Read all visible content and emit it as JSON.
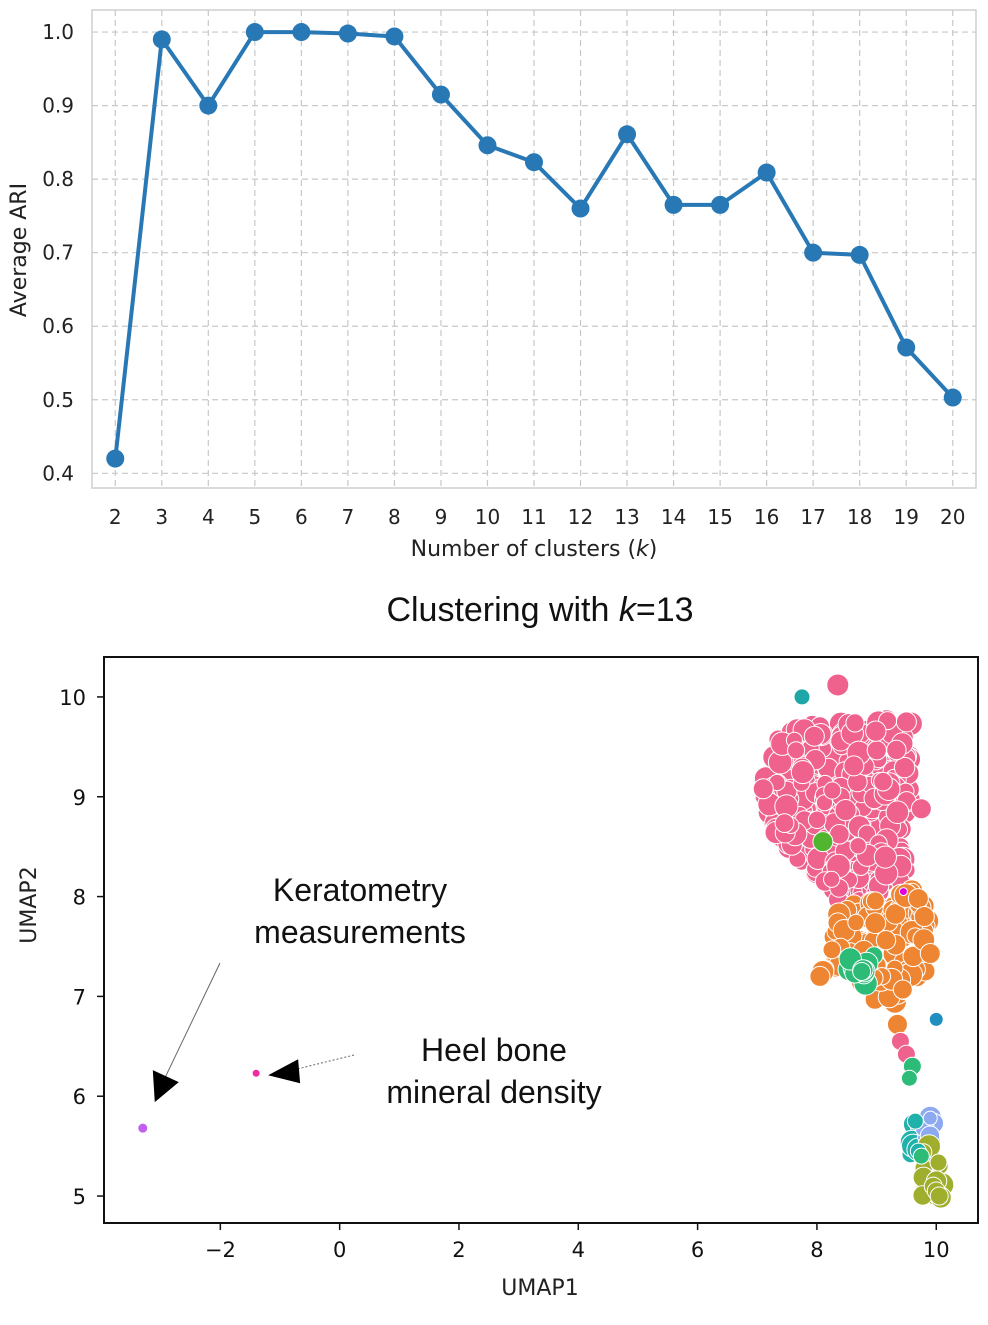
{
  "chart_data": [
    {
      "type": "line",
      "title": "",
      "xlabel": "Number of clusters (k)",
      "xlabel_plain": "Number of clusters (",
      "xlabel_var": "k",
      "xlabel_close": ")",
      "ylabel": "Average ARI",
      "x": [
        2,
        3,
        4,
        5,
        6,
        7,
        8,
        9,
        10,
        11,
        12,
        13,
        14,
        15,
        16,
        17,
        18,
        19,
        20
      ],
      "y": [
        0.42,
        0.99,
        0.9,
        1.0,
        1.0,
        0.998,
        0.994,
        0.915,
        0.846,
        0.823,
        0.76,
        0.861,
        0.765,
        0.765,
        0.809,
        0.7,
        0.697,
        0.571,
        0.503
      ],
      "xlim": [
        1.5,
        20.5
      ],
      "ylim": [
        0.38,
        1.03
      ],
      "xticks": [
        2,
        3,
        4,
        5,
        6,
        7,
        8,
        9,
        10,
        11,
        12,
        13,
        14,
        15,
        16,
        17,
        18,
        19,
        20
      ],
      "yticks": [
        0.4,
        0.5,
        0.6,
        0.7,
        0.8,
        0.9,
        1.0
      ],
      "ytick_labels": [
        "0.4",
        "0.5",
        "0.6",
        "0.7",
        "0.8",
        "0.9",
        "1.0"
      ],
      "grid": true,
      "color": "#2878b5"
    },
    {
      "type": "scatter",
      "title": "Clustering with k=13",
      "title_plain": "Clustering with ",
      "title_var": "k",
      "title_rest": "=13",
      "xlabel": "UMAP1",
      "ylabel": "UMAP2",
      "xlim": [
        -3.95,
        10.7
      ],
      "ylim": [
        4.73,
        10.4
      ],
      "xticks": [
        -2,
        0,
        2,
        4,
        6,
        8,
        10
      ],
      "xtick_labels": [
        "−2",
        "0",
        "2",
        "4",
        "6",
        "8",
        "10"
      ],
      "yticks": [
        5,
        6,
        7,
        8,
        9,
        10
      ],
      "ytick_labels": [
        "5",
        "6",
        "7",
        "8",
        "9",
        "10"
      ],
      "grid": false,
      "clusters": [
        {
          "color": "#f0628e",
          "region": [
            [
              7.4,
              9.7
            ],
            [
              9.6,
              9.8
            ],
            [
              9.5,
              8.0
            ],
            [
              8.9,
              7.8
            ],
            [
              8.0,
              8.0
            ],
            [
              7.3,
              8.6
            ],
            [
              7.0,
              9.1
            ]
          ],
          "count": 360
        },
        {
          "color": "#ee8533",
          "region": [
            [
              8.4,
              7.9
            ],
            [
              9.8,
              8.1
            ],
            [
              9.9,
              7.3
            ],
            [
              9.2,
              6.8
            ],
            [
              8.6,
              7.2
            ],
            [
              8.1,
              7.2
            ]
          ],
          "count": 120
        },
        {
          "color": "#2dbb78",
          "region": [
            [
              8.5,
              7.5
            ],
            [
              9.0,
              7.5
            ],
            [
              8.8,
              7.0
            ],
            [
              8.5,
              7.1
            ]
          ],
          "count": 10
        },
        {
          "color": "#20b2aa",
          "region": [
            [
              9.5,
              5.8
            ],
            [
              9.9,
              5.8
            ],
            [
              9.9,
              5.3
            ],
            [
              9.5,
              5.3
            ]
          ],
          "count": 10
        },
        {
          "color": "#8da9ef",
          "region": [
            [
              9.8,
              5.8
            ],
            [
              10.0,
              5.8
            ],
            [
              10.0,
              5.4
            ],
            [
              9.8,
              5.4
            ]
          ],
          "count": 10
        },
        {
          "color": "#9fae2d",
          "region": [
            [
              9.7,
              5.5
            ],
            [
              10.1,
              5.5
            ],
            [
              10.1,
              4.97
            ],
            [
              9.7,
              4.97
            ]
          ],
          "count": 15
        }
      ],
      "points": [
        {
          "x": 8.35,
          "y": 10.12,
          "color": "#f0628e",
          "size": 11
        },
        {
          "x": 7.75,
          "y": 10.0,
          "color": "#1fa6a6",
          "size": 8
        },
        {
          "x": 9.5,
          "y": 9.75,
          "color": "#f0628e",
          "size": 10
        },
        {
          "x": 7.1,
          "y": 9.08,
          "color": "#f0628e",
          "size": 10
        },
        {
          "x": 9.75,
          "y": 8.88,
          "color": "#f0628e",
          "size": 10
        },
        {
          "x": 8.1,
          "y": 8.55,
          "color": "#52b52f",
          "size": 10
        },
        {
          "x": 9.45,
          "y": 8.05,
          "color": "#e000e0",
          "size": 4
        },
        {
          "x": 9.7,
          "y": 7.98,
          "color": "#ee8533",
          "size": 10
        },
        {
          "x": 9.8,
          "y": 7.8,
          "color": "#ee8533",
          "size": 10
        },
        {
          "x": 8.1,
          "y": 7.25,
          "color": "#ee8533",
          "size": 11
        },
        {
          "x": 8.05,
          "y": 7.2,
          "color": "#ee8533",
          "size": 10
        },
        {
          "x": 9.9,
          "y": 7.43,
          "color": "#ee8533",
          "size": 10
        },
        {
          "x": 9.35,
          "y": 6.72,
          "color": "#ee8533",
          "size": 10
        },
        {
          "x": 9.4,
          "y": 6.55,
          "color": "#f0628e",
          "size": 9
        },
        {
          "x": 9.5,
          "y": 6.42,
          "color": "#f0628e",
          "size": 9
        },
        {
          "x": 8.75,
          "y": 7.25,
          "color": "#2dbb78",
          "size": 9
        },
        {
          "x": 10.0,
          "y": 6.77,
          "color": "#1f8fc0",
          "size": 7
        },
        {
          "x": 9.6,
          "y": 6.3,
          "color": "#2dbb78",
          "size": 9
        },
        {
          "x": 9.55,
          "y": 6.18,
          "color": "#2dbb78",
          "size": 8
        },
        {
          "x": 9.65,
          "y": 5.75,
          "color": "#20b2aa",
          "size": 8
        },
        {
          "x": 9.9,
          "y": 5.78,
          "color": "#8da9ef",
          "size": 7
        },
        {
          "x": 9.7,
          "y": 5.45,
          "color": "#20b2aa",
          "size": 8
        },
        {
          "x": 9.75,
          "y": 5.4,
          "color": "#2dbb78",
          "size": 8
        },
        {
          "x": 9.95,
          "y": 5.1,
          "color": "#9fae2d",
          "size": 9
        },
        {
          "x": 10.0,
          "y": 5.05,
          "color": "#9fae2d",
          "size": 9
        },
        {
          "x": 10.05,
          "y": 5.0,
          "color": "#9fae2d",
          "size": 9
        },
        {
          "x": -3.3,
          "y": 5.68,
          "color": "#c060f0",
          "size": 5
        },
        {
          "x": -1.4,
          "y": 6.23,
          "color": "#f02aa0",
          "size": 4
        }
      ],
      "annotations": [
        {
          "lines": [
            "Keratometry",
            "measurements"
          ],
          "target": [
            -3.3,
            5.68
          ]
        },
        {
          "lines": [
            "Heel bone",
            "mineral density"
          ],
          "target": [
            -1.4,
            6.23
          ]
        }
      ]
    }
  ]
}
